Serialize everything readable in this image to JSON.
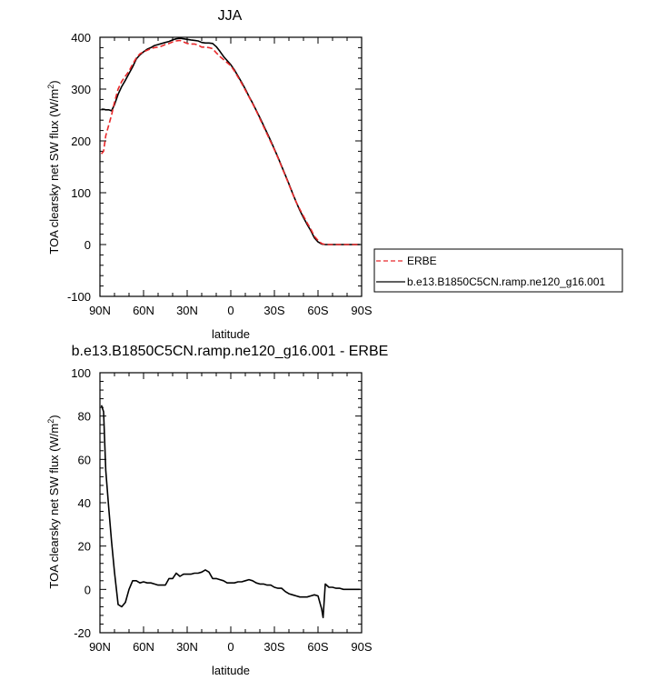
{
  "chart_data": [
    {
      "type": "line",
      "title": "JJA",
      "xlabel": "latitude",
      "ylabel": "TOA clearsky net SW flux (W/m",
      "ylabel_sup": "2",
      "ylabel_close": ")",
      "xlim": [
        90,
        -90
      ],
      "ylim": [
        -100,
        400
      ],
      "xticks": [
        90,
        60,
        30,
        0,
        -30,
        -60,
        -90
      ],
      "xtick_labels": [
        "90N",
        "60N",
        "30N",
        "0",
        "30S",
        "60S",
        "90S"
      ],
      "yticks": [
        -100,
        0,
        100,
        200,
        300,
        400
      ],
      "ytick_labels": [
        "-100",
        "0",
        "100",
        "200",
        "300",
        "400"
      ],
      "legend": "right",
      "series": [
        {
          "name": "ERBE",
          "color": "#e8282a",
          "dash": "dashed",
          "x": [
            89,
            87.5,
            86,
            84,
            82,
            80,
            77.5,
            75,
            72.5,
            70,
            67.5,
            65,
            62.5,
            60,
            57.5,
            55,
            52.5,
            50,
            47.5,
            45,
            42.5,
            40,
            37.5,
            35,
            32.5,
            30,
            27.5,
            25,
            22.5,
            20,
            17.5,
            15,
            12.5,
            10,
            7.5,
            5,
            2.5,
            0,
            -2.5,
            -5,
            -7.5,
            -10,
            -12.5,
            -15,
            -17.5,
            -20,
            -22.5,
            -25,
            -27.5,
            -30,
            -32.5,
            -35,
            -37.5,
            -40,
            -42.5,
            -45,
            -47.5,
            -50,
            -52.5,
            -55,
            -57.5,
            -60,
            -62.5,
            -65,
            -67.5,
            -70,
            -72.5,
            -75,
            -77.5,
            -80,
            -82.5,
            -85,
            -87.5,
            -89
          ],
          "y": [
            175,
            180,
            210,
            230,
            250,
            275,
            300,
            315,
            325,
            335,
            348,
            360,
            368,
            372,
            375,
            378,
            380,
            381,
            383,
            386,
            388,
            391,
            393,
            394,
            391,
            388,
            387,
            387,
            385,
            381,
            381,
            380,
            378,
            370,
            363,
            357,
            351,
            345,
            335,
            323,
            311,
            298,
            285,
            272,
            258,
            243,
            228,
            213,
            198,
            183,
            167,
            150,
            133,
            116,
            98,
            82,
            68,
            55,
            42,
            30,
            16,
            8,
            2,
            0,
            0,
            0,
            0,
            0,
            0,
            0,
            0,
            0,
            0,
            0
          ]
        },
        {
          "name": "b.e13.B1850C5CN.ramp.ne120_g16.001",
          "color": "#000000",
          "dash": "solid",
          "x": [
            89,
            87.5,
            86,
            84,
            82,
            80,
            77.5,
            75,
            72.5,
            70,
            67.5,
            65,
            62.5,
            60,
            57.5,
            55,
            52.5,
            50,
            47.5,
            45,
            42.5,
            40,
            37.5,
            35,
            32.5,
            30,
            27.5,
            25,
            22.5,
            20,
            17.5,
            15,
            12.5,
            10,
            7.5,
            5,
            2.5,
            0,
            -2.5,
            -5,
            -7.5,
            -10,
            -12.5,
            -15,
            -17.5,
            -20,
            -22.5,
            -25,
            -27.5,
            -30,
            -32.5,
            -35,
            -37.5,
            -40,
            -42.5,
            -45,
            -47.5,
            -50,
            -52.5,
            -55,
            -57.5,
            -60,
            -62.5,
            -65,
            -67.5,
            -70,
            -72.5,
            -75,
            -77.5,
            -80,
            -82.5,
            -85,
            -87.5,
            -89
          ],
          "y": [
            261,
            261,
            260,
            260,
            258,
            270,
            290,
            305,
            317,
            330,
            343,
            358,
            366,
            372,
            377,
            380,
            384,
            386,
            388,
            390,
            392,
            395,
            397,
            398,
            397,
            396,
            395,
            394,
            393,
            390,
            389,
            389,
            388,
            382,
            373,
            363,
            355,
            347,
            337,
            325,
            313,
            300,
            286,
            273,
            259,
            245,
            230,
            215,
            200,
            184,
            168,
            151,
            134,
            117,
            99,
            82,
            66,
            52,
            39,
            27,
            13,
            5,
            1,
            0,
            0,
            0,
            0,
            0,
            0,
            0,
            0,
            0,
            0,
            0
          ]
        }
      ]
    },
    {
      "type": "line",
      "title": "b.e13.B1850C5CN.ramp.ne120_g16.001 - ERBE",
      "xlabel": "latitude",
      "ylabel": "TOA clearsky net SW flux (W/m",
      "ylabel_sup": "2",
      "ylabel_close": ")",
      "xlim": [
        90,
        -90
      ],
      "ylim": [
        -20,
        100
      ],
      "xticks": [
        90,
        60,
        30,
        0,
        -30,
        -60,
        -90
      ],
      "xtick_labels": [
        "90N",
        "60N",
        "30N",
        "0",
        "30S",
        "60S",
        "90S"
      ],
      "yticks": [
        -20,
        0,
        20,
        40,
        60,
        80,
        100
      ],
      "ytick_labels": [
        "-20",
        "0",
        "20",
        "40",
        "60",
        "80",
        "100"
      ],
      "series": [
        {
          "name": "",
          "color": "#000000",
          "dash": "solid",
          "x": [
            89,
            87.5,
            86,
            84,
            82,
            80,
            77.5,
            75,
            72.5,
            70,
            67.5,
            65,
            62.5,
            60,
            57.5,
            55,
            52.5,
            50,
            47.5,
            45,
            42.5,
            40,
            37.5,
            35,
            32.5,
            30,
            27.5,
            25,
            22.5,
            20,
            17.5,
            15,
            12.5,
            10,
            7.5,
            5,
            2.5,
            0,
            -2.5,
            -5,
            -7.5,
            -10,
            -12.5,
            -15,
            -17.5,
            -20,
            -22.5,
            -25,
            -27.5,
            -30,
            -32.5,
            -35,
            -37.5,
            -40,
            -42.5,
            -45,
            -47.5,
            -50,
            -52.5,
            -55,
            -57.5,
            -60,
            -62.5,
            -63.5,
            -65,
            -67.5,
            -70,
            -72.5,
            -75,
            -77.5,
            -80,
            -82.5,
            -85,
            -87.5,
            -89
          ],
          "y": [
            85,
            82,
            55,
            38,
            22,
            8,
            -7,
            -8,
            -6,
            0,
            4,
            4,
            3,
            3.5,
            3,
            3,
            2.5,
            2,
            2,
            2,
            5,
            5,
            7.5,
            6,
            7,
            7,
            7,
            7.5,
            7.5,
            8,
            9,
            8,
            5,
            5,
            4.5,
            4,
            3,
            3,
            3,
            3.5,
            3.5,
            4,
            4.5,
            4,
            3,
            2.5,
            2.5,
            2,
            2,
            1,
            0.5,
            0.5,
            -1,
            -2,
            -2.5,
            -3,
            -3.5,
            -3.5,
            -3.5,
            -3,
            -2.5,
            -3,
            -9,
            -13,
            2.5,
            1,
            1,
            0.5,
            0.5,
            0,
            0,
            0,
            0,
            0,
            0
          ]
        }
      ]
    }
  ]
}
